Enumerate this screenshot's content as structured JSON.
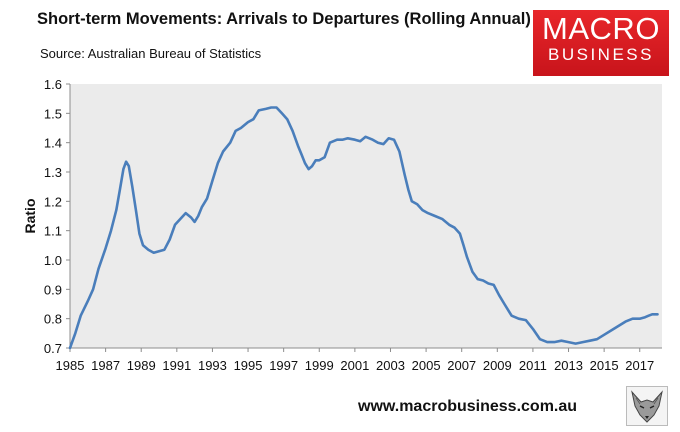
{
  "title": "Short-term Movements: Arrivals to Departures (Rolling Annual)",
  "subtitle": "Source: Australian Bureau of Statistics",
  "logo": {
    "line1": "MACRO",
    "line2": "BUSINESS"
  },
  "footer": {
    "url": "www.macrobusiness.com.au"
  },
  "colors": {
    "plot_bg": "#ebebeb",
    "line": "#4a7ebb",
    "logo_bg": "#e8262a"
  },
  "chart_data": {
    "type": "line",
    "title": "Short-term Movements: Arrivals to Departures (Rolling Annual)",
    "xlabel": "",
    "ylabel": "Ratio",
    "xlim": [
      1985,
      2018.25
    ],
    "ylim": [
      0.7,
      1.6
    ],
    "yticks": [
      0.7,
      0.8,
      0.9,
      1.0,
      1.1,
      1.2,
      1.3,
      1.4,
      1.5,
      1.6
    ],
    "ytick_labels": [
      "0.7",
      "0.8",
      "0.9",
      "1.0",
      "1.1",
      "1.2",
      "1.3",
      "1.4",
      "1.5",
      "1.6"
    ],
    "xticks": [
      1985,
      1987,
      1989,
      1991,
      1993,
      1995,
      1997,
      1999,
      2001,
      2003,
      2005,
      2007,
      2009,
      2011,
      2013,
      2015,
      2017
    ],
    "xtick_labels": [
      "1985",
      "1987",
      "1989",
      "1991",
      "1993",
      "1995",
      "1997",
      "1999",
      "2001",
      "2003",
      "2005",
      "2007",
      "2009",
      "2011",
      "2013",
      "2015",
      "2017"
    ],
    "grid": false,
    "series": [
      {
        "name": "Arrivals to Departures",
        "x": [
          1985.0,
          1985.3,
          1985.6,
          1986.0,
          1986.3,
          1986.6,
          1987.0,
          1987.3,
          1987.6,
          1987.8,
          1988.0,
          1988.15,
          1988.3,
          1988.5,
          1988.7,
          1988.9,
          1989.1,
          1989.4,
          1989.7,
          1990.0,
          1990.3,
          1990.6,
          1990.9,
          1991.2,
          1991.5,
          1991.8,
          1992.0,
          1992.2,
          1992.4,
          1992.7,
          1993.0,
          1993.3,
          1993.6,
          1994.0,
          1994.3,
          1994.6,
          1995.0,
          1995.3,
          1995.6,
          1996.0,
          1996.3,
          1996.6,
          1996.9,
          1997.2,
          1997.5,
          1997.8,
          1998.0,
          1998.2,
          1998.4,
          1998.6,
          1998.8,
          1999.0,
          1999.3,
          1999.6,
          2000.0,
          2000.3,
          2000.6,
          2001.0,
          2001.3,
          2001.6,
          2002.0,
          2002.3,
          2002.6,
          2002.9,
          2003.2,
          2003.5,
          2003.8,
          2004.0,
          2004.2,
          2004.5,
          2004.8,
          2005.1,
          2005.5,
          2005.9,
          2006.3,
          2006.6,
          2006.9,
          2007.1,
          2007.3,
          2007.6,
          2007.9,
          2008.2,
          2008.5,
          2008.8,
          2009.1,
          2009.4,
          2009.8,
          2010.2,
          2010.6,
          2011.0,
          2011.4,
          2011.8,
          2012.2,
          2012.6,
          2013.0,
          2013.4,
          2013.8,
          2014.2,
          2014.6,
          2015.0,
          2015.4,
          2015.8,
          2016.2,
          2016.6,
          2017.0,
          2017.3,
          2017.5,
          2017.7,
          2018.0
        ],
        "values": [
          0.7,
          0.75,
          0.81,
          0.86,
          0.9,
          0.97,
          1.04,
          1.1,
          1.17,
          1.24,
          1.31,
          1.335,
          1.32,
          1.25,
          1.17,
          1.09,
          1.05,
          1.035,
          1.025,
          1.03,
          1.035,
          1.07,
          1.12,
          1.14,
          1.16,
          1.145,
          1.13,
          1.15,
          1.18,
          1.21,
          1.27,
          1.33,
          1.37,
          1.4,
          1.44,
          1.45,
          1.47,
          1.48,
          1.51,
          1.515,
          1.52,
          1.52,
          1.5,
          1.48,
          1.44,
          1.39,
          1.36,
          1.33,
          1.31,
          1.32,
          1.34,
          1.34,
          1.35,
          1.4,
          1.41,
          1.41,
          1.415,
          1.41,
          1.405,
          1.42,
          1.41,
          1.4,
          1.395,
          1.415,
          1.41,
          1.37,
          1.29,
          1.24,
          1.2,
          1.19,
          1.17,
          1.16,
          1.15,
          1.14,
          1.12,
          1.11,
          1.09,
          1.05,
          1.01,
          0.96,
          0.935,
          0.93,
          0.92,
          0.915,
          0.88,
          0.85,
          0.81,
          0.8,
          0.795,
          0.765,
          0.73,
          0.72,
          0.72,
          0.725,
          0.72,
          0.715,
          0.72,
          0.725,
          0.73,
          0.745,
          0.76,
          0.775,
          0.79,
          0.8,
          0.8,
          0.805,
          0.81,
          0.815,
          0.815
        ]
      }
    ]
  }
}
